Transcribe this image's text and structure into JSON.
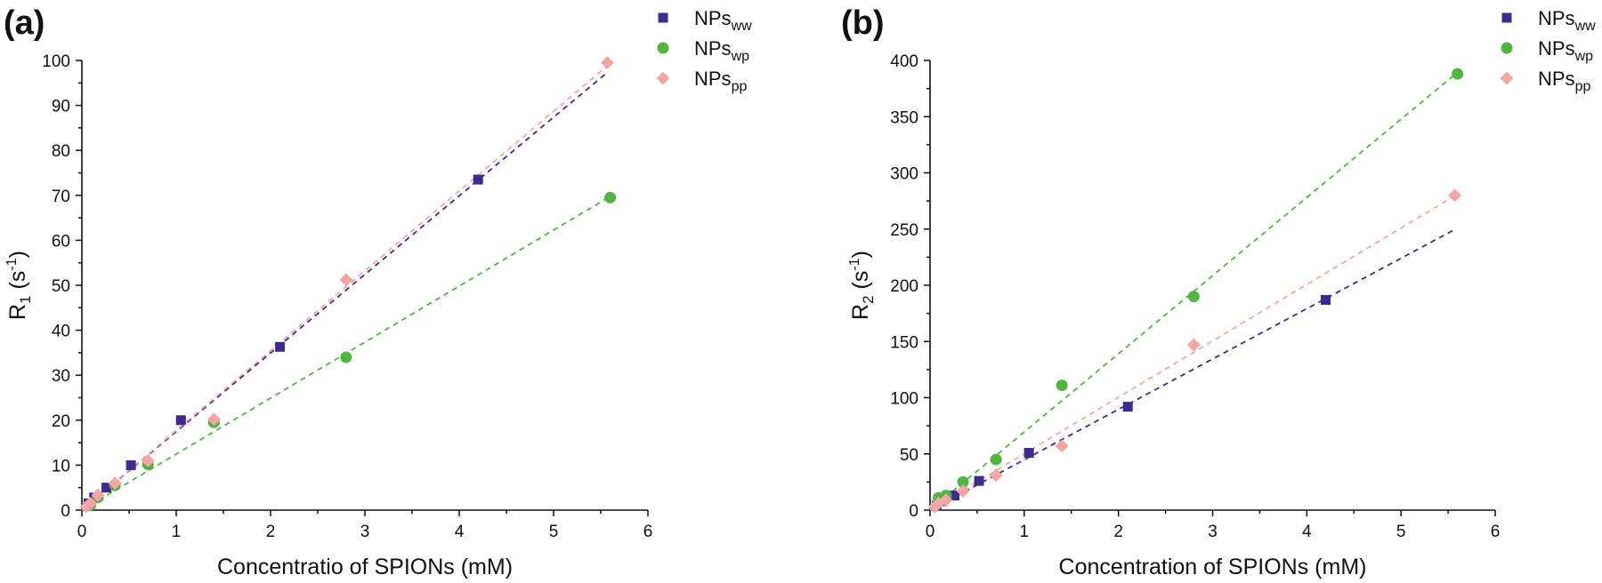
{
  "chart_data": [
    {
      "id": "a",
      "type": "scatter",
      "panel_label": "(a)",
      "xlabel": "Concentratio of SPIONs (mM)",
      "ylabel_main": "R",
      "ylabel_sub": "1",
      "ylabel_unit_open": " (s",
      "ylabel_unit_sup": "-1",
      "ylabel_unit_close": ")",
      "xlim": [
        0,
        6
      ],
      "ylim": [
        0,
        100
      ],
      "xticks": [
        0,
        1,
        2,
        3,
        4,
        5,
        6
      ],
      "yticks": [
        0,
        10,
        20,
        30,
        40,
        50,
        60,
        70,
        80,
        90,
        100
      ],
      "legend_position": "top-right",
      "series": [
        {
          "key": "ww",
          "name_main": "NPs",
          "name_sub": "ww",
          "color": "#3d2a8c",
          "marker": "square",
          "x": [
            0.07,
            0.13,
            0.26,
            0.52,
            1.05,
            2.1,
            4.2
          ],
          "y": [
            1.5,
            2.8,
            5.0,
            10.0,
            20.0,
            36.3,
            73.5
          ],
          "fit": {
            "x": [
              0,
              5.58
            ],
            "y": [
              0,
              97.5
            ]
          }
        },
        {
          "key": "wp",
          "name_main": "NPs",
          "name_sub": "wp",
          "color": "#52b542",
          "marker": "circle",
          "x": [
            0.09,
            0.17,
            0.35,
            0.7,
            1.4,
            2.8,
            5.6
          ],
          "y": [
            1.1,
            2.8,
            5.5,
            10.2,
            19.5,
            34.0,
            69.5
          ],
          "fit": {
            "x": [
              0,
              5.58
            ],
            "y": [
              0,
              69.5
            ]
          }
        },
        {
          "key": "pp",
          "name_main": "NPs",
          "name_sub": "pp",
          "color": "#f4a6a6",
          "marker": "diamond",
          "x": [
            0.05,
            0.09,
            0.17,
            0.35,
            0.7,
            1.4,
            2.8,
            5.57
          ],
          "y": [
            0.8,
            1.5,
            3.3,
            6.0,
            11.0,
            20.2,
            51.2,
            99.5
          ],
          "fit": {
            "x": [
              0,
              5.58
            ],
            "y": [
              0,
              99.0
            ]
          }
        }
      ]
    },
    {
      "id": "b",
      "type": "scatter",
      "panel_label": "(b)",
      "xlabel": "Concentration of SPIONs (mM)",
      "ylabel_main": "R",
      "ylabel_sub": "2",
      "ylabel_unit_open": " (s",
      "ylabel_unit_sup": "-1",
      "ylabel_unit_close": ")",
      "xlim": [
        0,
        6
      ],
      "ylim": [
        0,
        400
      ],
      "xticks": [
        0,
        1,
        2,
        3,
        4,
        5,
        6
      ],
      "yticks": [
        0,
        50,
        100,
        150,
        200,
        250,
        300,
        350,
        400
      ],
      "legend_position": "top-right",
      "series": [
        {
          "key": "ww",
          "name_main": "NPs",
          "name_sub": "ww",
          "color": "#3d2a8c",
          "marker": "square",
          "x": [
            0.07,
            0.13,
            0.26,
            0.52,
            1.05,
            2.1,
            4.2
          ],
          "y": [
            4,
            8,
            13,
            26,
            51,
            92,
            187
          ],
          "fit": {
            "x": [
              0,
              5.58
            ],
            "y": [
              0,
              250
            ]
          }
        },
        {
          "key": "wp",
          "name_main": "NPs",
          "name_sub": "wp",
          "color": "#52b542",
          "marker": "circle",
          "x": [
            0.09,
            0.17,
            0.35,
            0.7,
            1.4,
            2.8,
            5.6
          ],
          "y": [
            11,
            13,
            25,
            45,
            111,
            190,
            388
          ],
          "fit": {
            "x": [
              0,
              5.58
            ],
            "y": [
              0,
              388
            ]
          }
        },
        {
          "key": "pp",
          "name_main": "NPs",
          "name_sub": "pp",
          "color": "#f4a6a6",
          "marker": "diamond",
          "x": [
            0.05,
            0.09,
            0.17,
            0.35,
            0.7,
            1.4,
            2.8,
            5.57
          ],
          "y": [
            3,
            6,
            9,
            17,
            31,
            57,
            147,
            280
          ],
          "fit": {
            "x": [
              0,
              5.58
            ],
            "y": [
              0,
              280
            ]
          }
        }
      ]
    }
  ]
}
